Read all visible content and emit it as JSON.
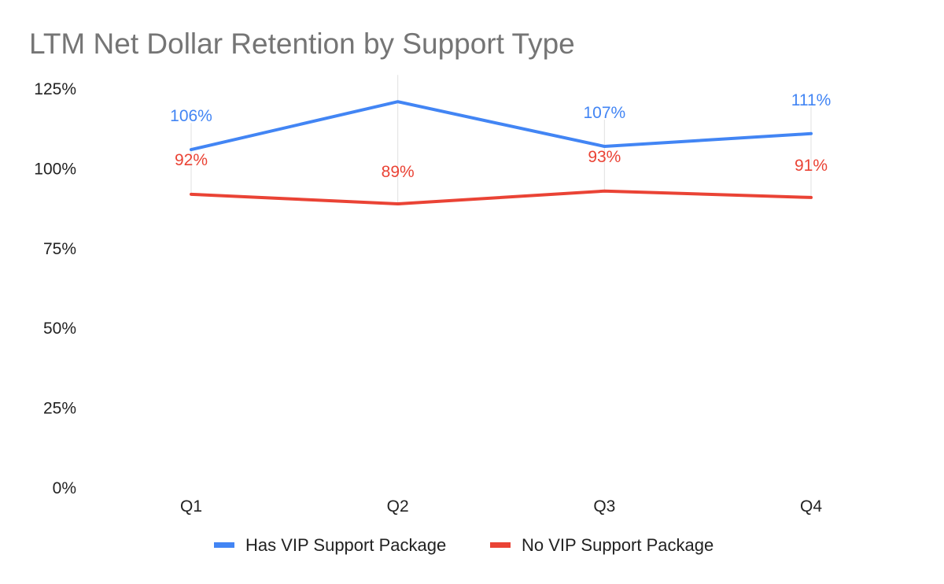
{
  "chart_data": {
    "type": "line",
    "title": "LTM Net Dollar Retention by Support Type",
    "xlabel": "",
    "ylabel": "",
    "categories": [
      "Q1",
      "Q2",
      "Q3",
      "Q4"
    ],
    "ylim": [
      0,
      125
    ],
    "yticks": [
      0,
      25,
      50,
      75,
      100,
      125
    ],
    "ytick_labels": [
      "0%",
      "25%",
      "50%",
      "75%",
      "100%",
      "125%"
    ],
    "grid": false,
    "legend_position": "bottom",
    "series": [
      {
        "name": "Has VIP Support Package",
        "color": "#4285f4",
        "values": [
          106,
          121,
          107,
          111
        ],
        "data_labels": [
          "106%",
          "",
          "107%",
          "111%"
        ]
      },
      {
        "name": "No VIP Support Package",
        "color": "#ea4335",
        "values": [
          92,
          89,
          93,
          91
        ],
        "data_labels": [
          "92%",
          "89%",
          "93%",
          "91%"
        ]
      }
    ]
  }
}
